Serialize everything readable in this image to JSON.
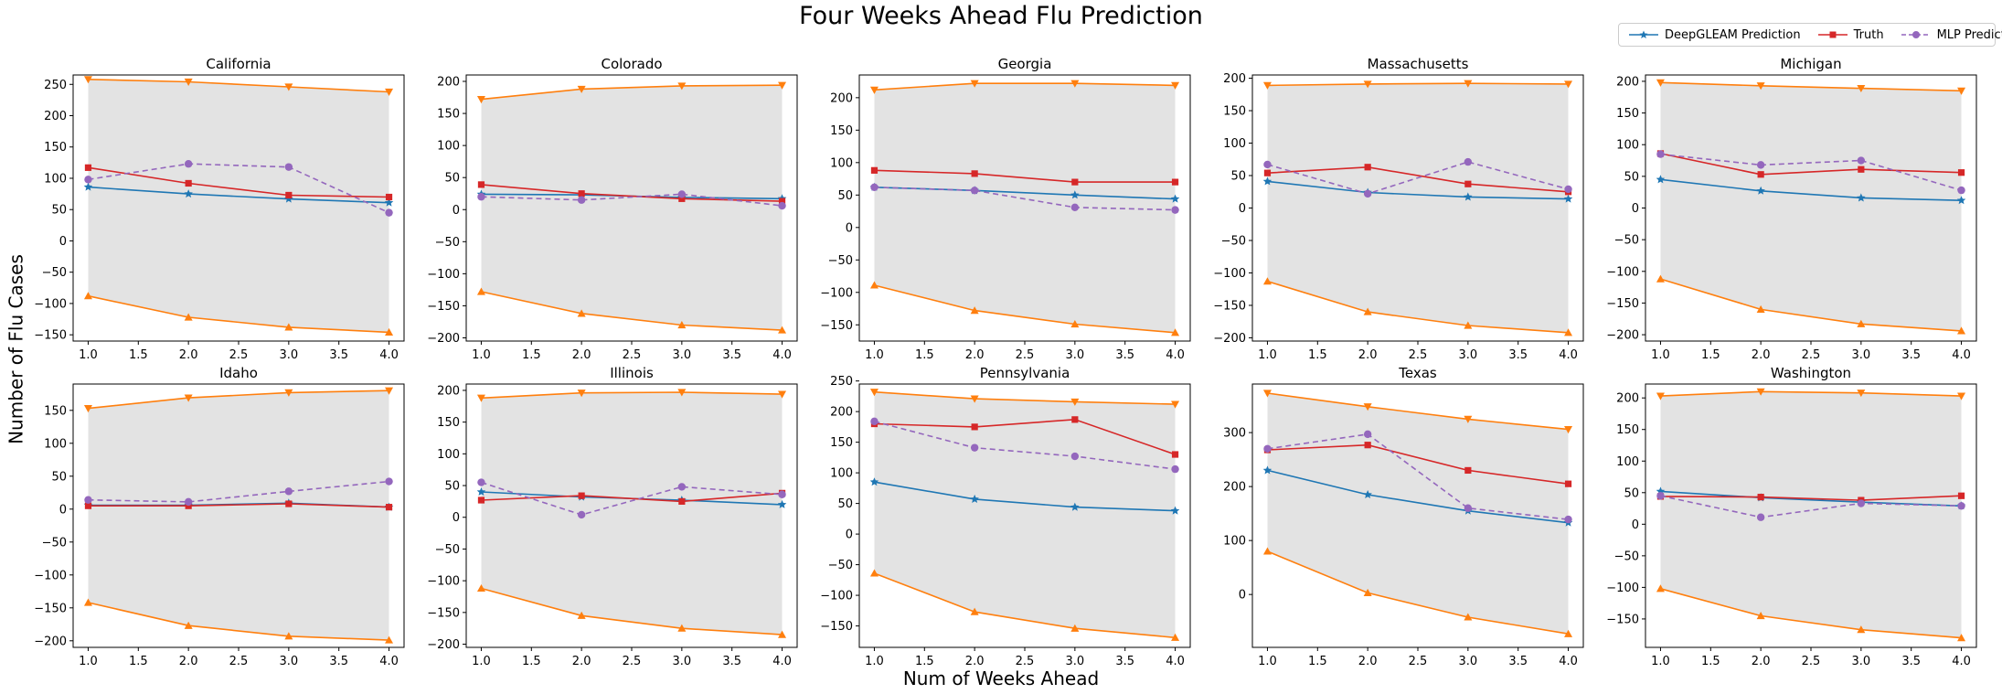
{
  "figure": {
    "title": "Four Weeks Ahead Flu Prediction",
    "ylabel": "Number of Flu Cases",
    "xlabel": "Num of Weeks Ahead"
  },
  "legend": {
    "placement": "top-right",
    "items": [
      {
        "label": "DeepGLEAM Prediction",
        "color": "#1f77b4",
        "marker": "star",
        "dash": false
      },
      {
        "label": "Truth",
        "color": "#d62728",
        "marker": "square",
        "dash": false
      },
      {
        "label": "MLP Prediction",
        "color": "#9467bd",
        "marker": "circle",
        "dash": true
      }
    ]
  },
  "colors": {
    "band_fill": "#e3e3e3",
    "bounds": "#ff7f0e"
  },
  "chart_data": [
    {
      "type": "line",
      "title": "California",
      "x": [
        1,
        2,
        3,
        4
      ],
      "ylim": [
        -160,
        265
      ],
      "yticks": [
        -150,
        -100,
        -50,
        0,
        50,
        100,
        150,
        200,
        250
      ],
      "series": [
        {
          "name": "upper",
          "values": [
            258,
            254,
            246,
            238
          ]
        },
        {
          "name": "lower",
          "values": [
            -88,
            -122,
            -138,
            -146
          ]
        },
        {
          "name": "DeepGLEAM Prediction",
          "values": [
            86,
            75,
            67,
            61
          ]
        },
        {
          "name": "Truth",
          "values": [
            117,
            92,
            73,
            70
          ]
        },
        {
          "name": "MLP Prediction",
          "values": [
            98,
            123,
            118,
            45
          ]
        }
      ]
    },
    {
      "type": "line",
      "title": "Colorado",
      "x": [
        1,
        2,
        3,
        4
      ],
      "ylim": [
        -205,
        210
      ],
      "yticks": [
        -200,
        -150,
        -100,
        -50,
        0,
        50,
        100,
        150,
        200
      ],
      "series": [
        {
          "name": "upper",
          "values": [
            172,
            188,
            193,
            194
          ]
        },
        {
          "name": "lower",
          "values": [
            -128,
            -162,
            -180,
            -188
          ]
        },
        {
          "name": "DeepGLEAM Prediction",
          "values": [
            24,
            23,
            19,
            17
          ]
        },
        {
          "name": "Truth",
          "values": [
            39,
            25,
            17,
            13
          ]
        },
        {
          "name": "MLP Prediction",
          "values": [
            20,
            15,
            24,
            6
          ]
        }
      ]
    },
    {
      "type": "line",
      "title": "Georgia",
      "x": [
        1,
        2,
        3,
        4
      ],
      "ylim": [
        -175,
        235
      ],
      "yticks": [
        -150,
        -100,
        -50,
        0,
        50,
        100,
        150,
        200
      ],
      "series": [
        {
          "name": "upper",
          "values": [
            212,
            222,
            222,
            219
          ]
        },
        {
          "name": "lower",
          "values": [
            -89,
            -128,
            -149,
            -162
          ]
        },
        {
          "name": "DeepGLEAM Prediction",
          "values": [
            62,
            57,
            50,
            44
          ]
        },
        {
          "name": "Truth",
          "values": [
            88,
            83,
            70,
            70
          ]
        },
        {
          "name": "MLP Prediction",
          "values": [
            62,
            57,
            31,
            27
          ]
        }
      ]
    },
    {
      "type": "line",
      "title": "Massachusetts",
      "x": [
        1,
        2,
        3,
        4
      ],
      "ylim": [
        -205,
        205
      ],
      "yticks": [
        -200,
        -150,
        -100,
        -50,
        0,
        50,
        100,
        150,
        200
      ],
      "series": [
        {
          "name": "upper",
          "values": [
            189,
            191,
            192,
            191
          ]
        },
        {
          "name": "lower",
          "values": [
            -113,
            -160,
            -181,
            -192
          ]
        },
        {
          "name": "DeepGLEAM Prediction",
          "values": [
            41,
            24,
            17,
            14
          ]
        },
        {
          "name": "Truth",
          "values": [
            54,
            63,
            37,
            25
          ]
        },
        {
          "name": "MLP Prediction",
          "values": [
            67,
            22,
            71,
            29
          ]
        }
      ]
    },
    {
      "type": "line",
      "title": "Michigan",
      "x": [
        1,
        2,
        3,
        4
      ],
      "ylim": [
        -210,
        210
      ],
      "yticks": [
        -200,
        -150,
        -100,
        -50,
        0,
        50,
        100,
        150,
        200
      ],
      "series": [
        {
          "name": "upper",
          "values": [
            198,
            193,
            189,
            185
          ]
        },
        {
          "name": "lower",
          "values": [
            -112,
            -160,
            -183,
            -194
          ]
        },
        {
          "name": "DeepGLEAM Prediction",
          "values": [
            45,
            27,
            16,
            12
          ]
        },
        {
          "name": "Truth",
          "values": [
            86,
            53,
            61,
            56
          ]
        },
        {
          "name": "MLP Prediction",
          "values": [
            85,
            68,
            75,
            28
          ]
        }
      ]
    },
    {
      "type": "line",
      "title": "Idaho",
      "x": [
        1,
        2,
        3,
        4
      ],
      "ylim": [
        -210,
        190
      ],
      "yticks": [
        -200,
        -150,
        -100,
        -50,
        0,
        50,
        100,
        150
      ],
      "series": [
        {
          "name": "upper",
          "values": [
            153,
            169,
            177,
            180
          ]
        },
        {
          "name": "lower",
          "values": [
            -142,
            -177,
            -193,
            -199
          ]
        },
        {
          "name": "DeepGLEAM Prediction",
          "values": [
            6,
            6,
            9,
            3
          ]
        },
        {
          "name": "Truth",
          "values": [
            5,
            5,
            8,
            3
          ]
        },
        {
          "name": "MLP Prediction",
          "values": [
            14,
            11,
            27,
            42
          ]
        }
      ]
    },
    {
      "type": "line",
      "title": "Illinois",
      "x": [
        1,
        2,
        3,
        4
      ],
      "ylim": [
        -205,
        210
      ],
      "yticks": [
        -200,
        -150,
        -100,
        -50,
        0,
        50,
        100,
        150,
        200
      ],
      "series": [
        {
          "name": "upper",
          "values": [
            188,
            196,
            197,
            194
          ]
        },
        {
          "name": "lower",
          "values": [
            -112,
            -155,
            -175,
            -185
          ]
        },
        {
          "name": "DeepGLEAM Prediction",
          "values": [
            40,
            32,
            27,
            20
          ]
        },
        {
          "name": "Truth",
          "values": [
            27,
            34,
            25,
            38
          ]
        },
        {
          "name": "MLP Prediction",
          "values": [
            55,
            4,
            48,
            36
          ]
        }
      ]
    },
    {
      "type": "line",
      "title": "Pennsylvania",
      "x": [
        1,
        2,
        3,
        4
      ],
      "ylim": [
        -185,
        245
      ],
      "yticks": [
        -150,
        -100,
        -50,
        0,
        50,
        100,
        150,
        200,
        250
      ],
      "series": [
        {
          "name": "upper",
          "values": [
            232,
            221,
            216,
            212
          ]
        },
        {
          "name": "lower",
          "values": [
            -64,
            -127,
            -154,
            -169
          ]
        },
        {
          "name": "DeepGLEAM Prediction",
          "values": [
            85,
            57,
            44,
            38
          ]
        },
        {
          "name": "Truth",
          "values": [
            180,
            175,
            187,
            130
          ]
        },
        {
          "name": "MLP Prediction",
          "values": [
            184,
            141,
            127,
            106
          ]
        }
      ]
    },
    {
      "type": "line",
      "title": "Texas",
      "x": [
        1,
        2,
        3,
        4
      ],
      "ylim": [
        -98,
        390
      ],
      "yticks": [
        0,
        100,
        200,
        300
      ],
      "series": [
        {
          "name": "upper",
          "values": [
            373,
            348,
            325,
            306
          ]
        },
        {
          "name": "lower",
          "values": [
            80,
            3,
            -42,
            -73
          ]
        },
        {
          "name": "DeepGLEAM Prediction",
          "values": [
            230,
            185,
            155,
            133
          ]
        },
        {
          "name": "Truth",
          "values": [
            268,
            277,
            230,
            205
          ]
        },
        {
          "name": "MLP Prediction",
          "values": [
            270,
            297,
            160,
            139
          ]
        }
      ]
    },
    {
      "type": "line",
      "title": "Washington",
      "x": [
        1,
        2,
        3,
        4
      ],
      "ylim": [
        -195,
        222
      ],
      "yticks": [
        -150,
        -100,
        -50,
        0,
        50,
        100,
        150,
        200
      ],
      "series": [
        {
          "name": "upper",
          "values": [
            203,
            210,
            208,
            203
          ]
        },
        {
          "name": "lower",
          "values": [
            -102,
            -145,
            -167,
            -180
          ]
        },
        {
          "name": "DeepGLEAM Prediction",
          "values": [
            52,
            42,
            35,
            29
          ]
        },
        {
          "name": "Truth",
          "values": [
            44,
            43,
            38,
            45
          ]
        },
        {
          "name": "MLP Prediction",
          "values": [
            45,
            11,
            33,
            29
          ]
        }
      ]
    }
  ]
}
